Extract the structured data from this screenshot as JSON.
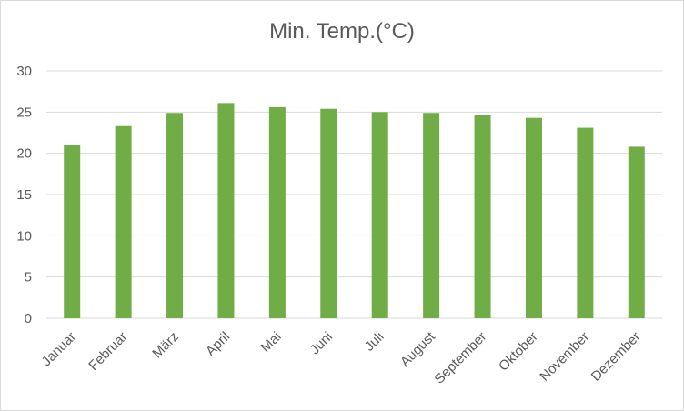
{
  "chart_data": {
    "type": "bar",
    "title": "Min. Temp.(°C)",
    "xlabel": "",
    "ylabel": "",
    "categories": [
      "Januar",
      "Februar",
      "März",
      "April",
      "Mai",
      "Juni",
      "Juli",
      "August",
      "September",
      "Oktober",
      "November",
      "Dezember"
    ],
    "series": [
      {
        "values": [
          21.0,
          23.3,
          24.9,
          26.1,
          25.6,
          25.4,
          25.0,
          24.9,
          24.6,
          24.3,
          23.1,
          20.8
        ]
      }
    ],
    "ylim": [
      0,
      30
    ],
    "yticks": [
      "0",
      "5",
      "10",
      "15",
      "20",
      "25",
      "30"
    ],
    "grid": true,
    "legend": "none",
    "colors": {
      "bar": "#70ad47",
      "grid": "#d9d9d9",
      "text": "#595959"
    }
  }
}
